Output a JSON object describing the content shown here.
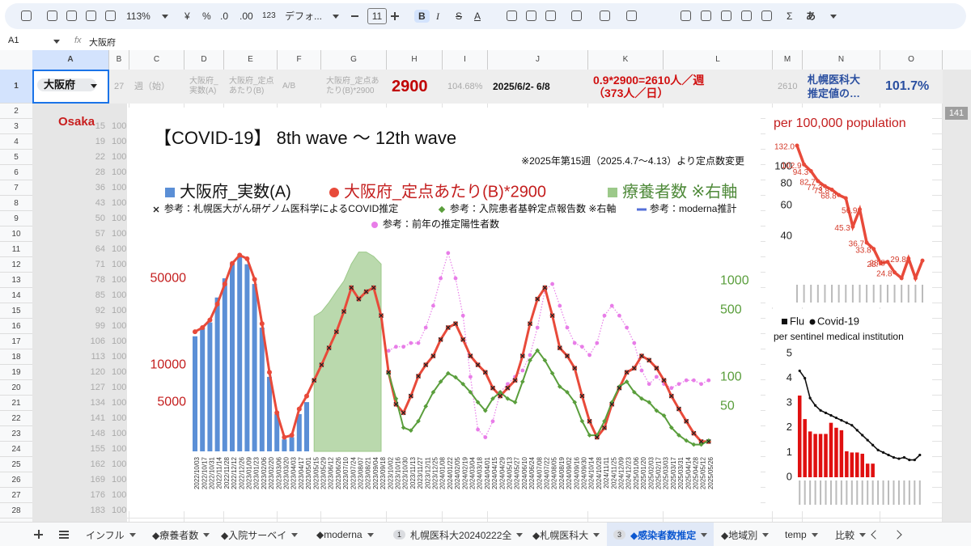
{
  "toolbar": {
    "zoom": "113%",
    "currency": "¥",
    "percent": "%",
    "decimal_decrease": ".0",
    "decimal_increase": ".00",
    "number_format": "123",
    "font": "デフォ...",
    "font_size": "11",
    "bold": "B",
    "italic": "I",
    "strike": "S",
    "text_color": "A",
    "sum": "Σ",
    "input": "あ"
  },
  "formula_bar": {
    "cell": "A1",
    "fx": "fx",
    "content": "大阪府"
  },
  "columns": [
    "A",
    "B",
    "C",
    "D",
    "E",
    "F",
    "G",
    "H",
    "I",
    "J",
    "K",
    "L",
    "M",
    "N",
    "O"
  ],
  "row_numbers": [
    1,
    2,
    3,
    4,
    5,
    6,
    7,
    8,
    9,
    10,
    11,
    12,
    13,
    14,
    15,
    16,
    17,
    18,
    19,
    20,
    21,
    22,
    23,
    24,
    25,
    26,
    27,
    28
  ],
  "row1": [
    {
      "col": "A",
      "lines": [
        "大阪府"
      ]
    },
    {
      "col": "B",
      "lines": [
        "27"
      ]
    },
    {
      "col": "C",
      "lines": [
        "週（始）"
      ]
    },
    {
      "col": "D",
      "lines": [
        "大阪府_",
        "実数(A)"
      ]
    },
    {
      "col": "E",
      "lines": [
        "大阪府_定点",
        "あたり(B)"
      ]
    },
    {
      "col": "F",
      "lines": [
        "A/B"
      ]
    },
    {
      "col": "G",
      "lines": [
        "大阪府_定点あ",
        "たり(B)*2900"
      ]
    },
    {
      "col": "H",
      "lines": [
        "2900"
      ]
    },
    {
      "col": "I",
      "lines": [
        "104.68%"
      ]
    },
    {
      "col": "J",
      "lines": [
        "2025/6/2- 6/8"
      ]
    },
    {
      "col": "K",
      "lines": [
        "0.9*2900=2610人／週",
        "（373人／日）"
      ]
    },
    {
      "col": "M",
      "lines": [
        "2610"
      ]
    },
    {
      "col": "N",
      "lines": [
        "札幌医科大",
        "推定値の…"
      ]
    },
    {
      "col": "O",
      "lines": [
        "101.7%"
      ]
    }
  ],
  "column_a_label": "Osaka",
  "column_b_values": [
    15,
    19,
    22,
    28,
    36,
    43,
    50,
    57,
    64,
    71,
    78,
    85,
    92,
    99,
    106,
    113,
    120,
    127,
    134,
    141,
    148,
    155,
    162,
    169,
    176,
    183
  ],
  "column_c_value": 100,
  "overflow_cell": 141,
  "tabs": [
    {
      "name": "インフル"
    },
    {
      "name": "◆療養者数"
    },
    {
      "name": "◆入院サーベイ"
    },
    {
      "name": "◆moderna"
    },
    {
      "badge": 1,
      "name": "札幌医科大20240222全"
    },
    {
      "name": "◆札幌医科大"
    },
    {
      "badge": 3,
      "name": "◆感染者数推定",
      "active": true
    },
    {
      "name": "◆地域別"
    },
    {
      "name": "temp"
    },
    {
      "name": "比較"
    }
  ],
  "chart_data": [
    {
      "type": "line",
      "title": "【COVID-19】 8th wave 〜 12th wave",
      "subtitle": "※2025年第15週（2025.4.7〜4.13）より定点数変更",
      "categories": [
        "2022/10/03",
        "2022/10/17",
        "2022/10/31",
        "2022/11/14",
        "2022/11/28",
        "2022/12/12",
        "2022/12/26",
        "2023/01/09",
        "2023/01/23",
        "2023/02/06",
        "2023/02/20",
        "2023/03/06",
        "2023/03/20",
        "2023/04/03",
        "2023/04/17",
        "2023/05/01",
        "2023/05/15",
        "2023/05/29",
        "2023/06/12",
        "2023/06/26",
        "2023/07/10",
        "2023/07/24",
        "2023/08/07",
        "2023/08/21",
        "2023/09/04",
        "2023/09/18",
        "2023/10/02",
        "2023/10/16",
        "2023/10/30",
        "2023/11/13",
        "2023/11/27",
        "2023/12/11",
        "2023/12/25",
        "2024/01/08",
        "2024/01/22",
        "2024/02/05",
        "2024/02/19",
        "2024/03/04",
        "2024/03/18",
        "2024/04/01",
        "2024/04/15",
        "2024/04/29",
        "2024/05/13",
        "2024/05/27",
        "2024/06/10",
        "2024/06/24",
        "2024/07/08",
        "2024/07/22",
        "2024/08/05",
        "2024/08/19",
        "2024/09/02",
        "2024/09/16",
        "2024/09/30",
        "2024/10/14",
        "2024/10/28",
        "2024/11/11",
        "2024/11/25",
        "2024/12/09",
        "2024/12/23",
        "2025/01/06",
        "2025/01/20",
        "2025/02/03",
        "2025/02/17",
        "2025/03/03",
        "2025/03/17",
        "2025/03/31",
        "2025/04/14",
        "2025/04/28",
        "2025/05/12",
        "2025/05/26"
      ],
      "log_scale": true,
      "ylim": [
        2000,
        100000
      ],
      "yticks": [
        5000,
        10000,
        50000
      ],
      "y2lim": [
        17,
        2600
      ],
      "y2ticks": [
        50,
        100,
        500,
        1000
      ],
      "series": [
        {
          "name": "大阪府_実数(A)",
          "kind": "bar",
          "color": "#5b8fd6",
          "values": [
            17000,
            20000,
            22000,
            35000,
            50000,
            66000,
            75000,
            65000,
            45000,
            20000,
            8000,
            4000,
            2500,
            2600,
            4000,
            5000,
            null,
            null,
            null,
            null,
            null,
            null,
            null,
            null,
            null,
            null,
            null,
            null,
            null,
            null,
            null,
            null,
            null,
            null,
            null,
            null,
            null,
            null,
            null,
            null,
            null,
            null,
            null,
            null,
            null,
            null,
            null,
            null,
            null,
            null,
            null,
            null,
            null,
            null,
            null,
            null,
            null,
            null,
            null,
            null,
            null,
            null,
            null,
            null,
            null,
            null,
            null,
            null,
            null,
            null
          ]
        },
        {
          "name": "大阪府_定点あたり(B)*2900",
          "kind": "line",
          "color": "#e84a3a",
          "values": [
            18500,
            20000,
            23000,
            31000,
            45000,
            66000,
            77000,
            72000,
            49000,
            21500,
            8700,
            4100,
            2600,
            2700,
            4400,
            5600,
            7500,
            10000,
            13700,
            18500,
            27000,
            42000,
            34000,
            39000,
            42000,
            25000,
            8700,
            4800,
            4100,
            5600,
            8100,
            10000,
            11800,
            16000,
            20000,
            21500,
            16000,
            11800,
            10000,
            8700,
            6500,
            5600,
            6500,
            7500,
            11800,
            21500,
            34000,
            42000,
            25000,
            13700,
            11800,
            9400,
            5600,
            3500,
            2600,
            3100,
            4800,
            6500,
            8700,
            9400,
            11800,
            10900,
            9400,
            7500,
            5600,
            4400,
            3500,
            2800,
            2400,
            2400
          ]
        },
        {
          "name": "療養者数 ※右軸",
          "kind": "area",
          "color": "#9cc98a",
          "axis": "y2",
          "values": [
            null,
            null,
            null,
            null,
            null,
            null,
            null,
            null,
            null,
            null,
            null,
            null,
            null,
            null,
            null,
            null,
            430,
            480,
            600,
            780,
            1000,
            1500,
            2000,
            2000,
            1800,
            1500,
            null,
            null,
            null,
            null,
            null,
            null,
            null,
            null,
            null,
            null,
            null,
            null,
            null,
            null,
            null,
            null,
            null,
            null,
            null,
            null,
            null,
            null,
            null,
            null,
            null,
            null,
            null,
            null,
            null,
            null,
            null,
            null,
            null,
            null,
            null,
            null,
            null,
            null,
            null,
            null,
            null,
            null,
            null,
            null
          ]
        },
        {
          "name": "参考：札幌医大がん研ゲノム医科学によるCOVID推定",
          "kind": "cross",
          "color": "#222222",
          "values": [
            null,
            null,
            null,
            null,
            null,
            null,
            null,
            null,
            null,
            null,
            null,
            null,
            null,
            null,
            null,
            null,
            7500,
            10000,
            13700,
            18500,
            27000,
            42000,
            34000,
            39000,
            42000,
            25000,
            8700,
            4800,
            4100,
            5600,
            8100,
            10000,
            11800,
            16000,
            20000,
            21500,
            16000,
            11800,
            10000,
            8700,
            6500,
            5600,
            6500,
            7500,
            11800,
            21500,
            34000,
            42000,
            25000,
            13700,
            11800,
            9400,
            5600,
            3500,
            2600,
            3100,
            4800,
            6500,
            8700,
            9400,
            11800,
            10900,
            9400,
            7500,
            5600,
            4400,
            3500,
            2800,
            2400,
            2400
          ]
        },
        {
          "name": "参考：入院患者基幹定点報告数 ※右軸",
          "kind": "line",
          "color": "#5a9e3c",
          "axis": "y2",
          "values": [
            null,
            null,
            null,
            null,
            null,
            null,
            null,
            null,
            null,
            null,
            null,
            null,
            null,
            null,
            null,
            null,
            null,
            null,
            null,
            null,
            null,
            null,
            null,
            null,
            null,
            null,
            110,
            60,
            30,
            28,
            35,
            50,
            70,
            90,
            110,
            100,
            85,
            70,
            55,
            45,
            60,
            70,
            60,
            55,
            90,
            150,
            190,
            150,
            110,
            80,
            70,
            55,
            35,
            25,
            25,
            35,
            55,
            80,
            90,
            70,
            60,
            55,
            45,
            40,
            30,
            25,
            22,
            20,
            20,
            22
          ]
        },
        {
          "name": "参考：moderna推計",
          "kind": "legend",
          "color": "#5570d8"
        },
        {
          "name": "参考：前年の推定陽性者数",
          "kind": "dotted",
          "color": "#e87de8",
          "values": [
            null,
            null,
            null,
            null,
            null,
            null,
            null,
            null,
            null,
            null,
            null,
            null,
            null,
            null,
            null,
            null,
            null,
            null,
            null,
            null,
            null,
            null,
            null,
            null,
            null,
            null,
            13000,
            14000,
            14000,
            15000,
            15000,
            20000,
            30000,
            50000,
            80000,
            50000,
            25000,
            8000,
            3000,
            2600,
            3500,
            6000,
            7000,
            8000,
            9000,
            12000,
            20000,
            40000,
            45000,
            30000,
            20000,
            15000,
            14000,
            12000,
            15000,
            25000,
            30000,
            25000,
            20000,
            15000,
            9000,
            7000,
            8000,
            7000,
            6500,
            7000,
            7500,
            7500,
            7000,
            7500
          ]
        }
      ]
    },
    {
      "type": "line",
      "title": "per 100,000 population",
      "log_scale": true,
      "ylim": [
        22,
        150
      ],
      "yticks": [
        40,
        60,
        80,
        100
      ],
      "color": "#e84a3a",
      "values": [
        132,
        102.9,
        94.3,
        82.7,
        77.3,
        73.8,
        68.8,
        66,
        45.3,
        56.9,
        36.7,
        33.8,
        28,
        28.5,
        24.8,
        23,
        29.8,
        23,
        29
      ],
      "value_labels": [
        "132.0",
        "102.9",
        "94.3",
        "82.7",
        "77.3",
        "73.8",
        "68.8",
        null,
        "45.3",
        "56.9",
        "36.7",
        "33.8",
        "28.",
        "28.5",
        "24.8",
        null,
        "29.8",
        null,
        null
      ]
    },
    {
      "type": "bar",
      "subtitle": "per sentinel medical institution",
      "ylim": [
        0,
        5
      ],
      "yticks": [
        0,
        1,
        2,
        3,
        4,
        5
      ],
      "series": [
        {
          "name": "Flu",
          "kind": "bar",
          "color": "#e01010",
          "values": [
            3.3,
            2.35,
            1.85,
            1.75,
            1.75,
            1.75,
            2.2,
            2.0,
            1.9,
            1.05,
            1.0,
            1.0,
            0.95,
            0.55,
            0.55,
            null,
            null,
            null,
            null,
            null,
            null,
            null,
            null,
            null
          ]
        },
        {
          "name": "Covid-19",
          "kind": "line",
          "color": "#111111",
          "values": [
            4.3,
            4.0,
            3.2,
            2.9,
            2.7,
            2.6,
            2.5,
            2.4,
            2.3,
            2.2,
            2.1,
            1.9,
            1.7,
            1.5,
            1.3,
            1.1,
            1.0,
            0.9,
            0.8,
            0.75,
            0.8,
            0.7,
            0.7,
            0.9
          ]
        }
      ]
    }
  ]
}
